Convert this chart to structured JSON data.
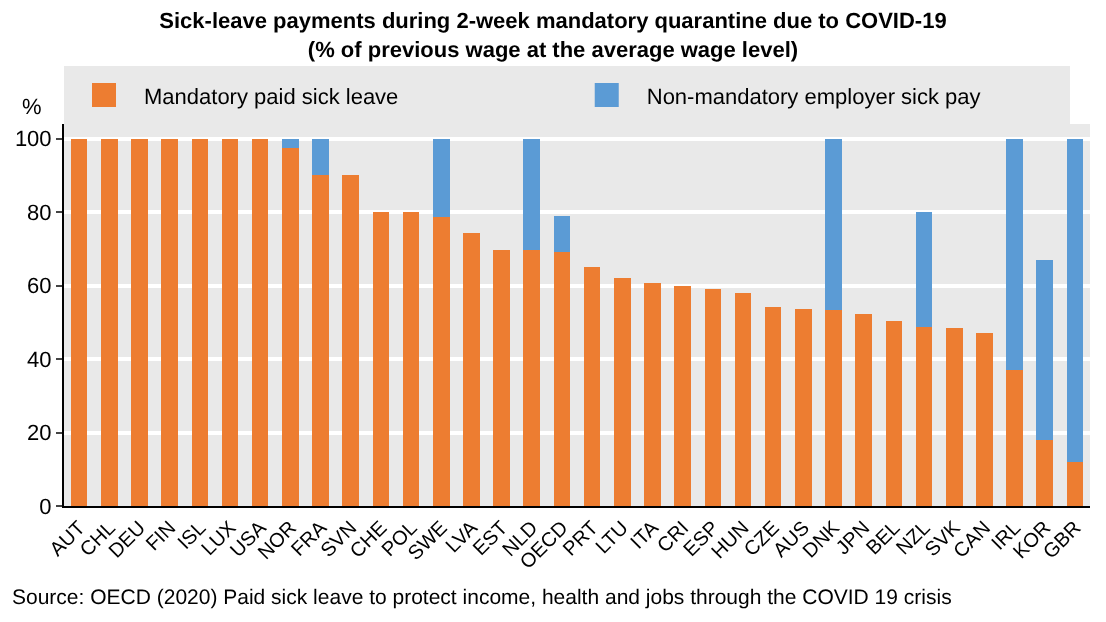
{
  "chart_data": {
    "type": "bar",
    "stacked": true,
    "title": "Sick-leave payments during 2-week mandatory quarantine due to COVID-19\n(% of previous wage at the average wage level)",
    "ylabel": "%",
    "categories": [
      "AUT",
      "CHL",
      "DEU",
      "FIN",
      "ISL",
      "LUX",
      "USA",
      "NOR",
      "FRA",
      "SVN",
      "CHE",
      "POL",
      "SWE",
      "LVA",
      "EST",
      "NLD",
      "OECD",
      "PRT",
      "LTU",
      "ITA",
      "CRI",
      "ESP",
      "HUN",
      "CZE",
      "AUS",
      "DNK",
      "JPN",
      "BEL",
      "NZL",
      "SVK",
      "CAN",
      "IRL",
      "KOR",
      "GBR"
    ],
    "series": [
      {
        "name": "Mandatory paid sick leave",
        "color": "#ed7d31",
        "values": [
          100,
          100,
          100,
          100,
          100,
          100,
          100,
          97.6,
          90,
          90,
          80,
          80,
          78.6,
          74.3,
          69.8,
          69.8,
          69.1,
          65.2,
          62.2,
          60.7,
          60,
          59,
          57.9,
          54.2,
          53.6,
          53.3,
          52.3,
          50.3,
          48.6,
          48.4,
          47,
          37.1,
          17.9,
          11.9
        ]
      },
      {
        "name": "Non-mandatory employer sick pay",
        "color": "#5b9bd5",
        "values": [
          null,
          null,
          null,
          null,
          null,
          null,
          null,
          2.4,
          10,
          null,
          null,
          null,
          21.4,
          null,
          null,
          30.2,
          9.9,
          null,
          null,
          null,
          null,
          null,
          null,
          null,
          null,
          46.7,
          null,
          null,
          31.5,
          null,
          null,
          62.9,
          49.1,
          88.1
        ]
      }
    ],
    "ylim": [
      0,
      104
    ],
    "yticks": [
      0,
      20,
      40,
      60,
      80,
      100
    ],
    "grid": "y",
    "legend": "top",
    "annotations": [
      "Source: OECD (2020) Paid sick leave to protect income, health and jobs through the COVID 19 crisis"
    ]
  }
}
